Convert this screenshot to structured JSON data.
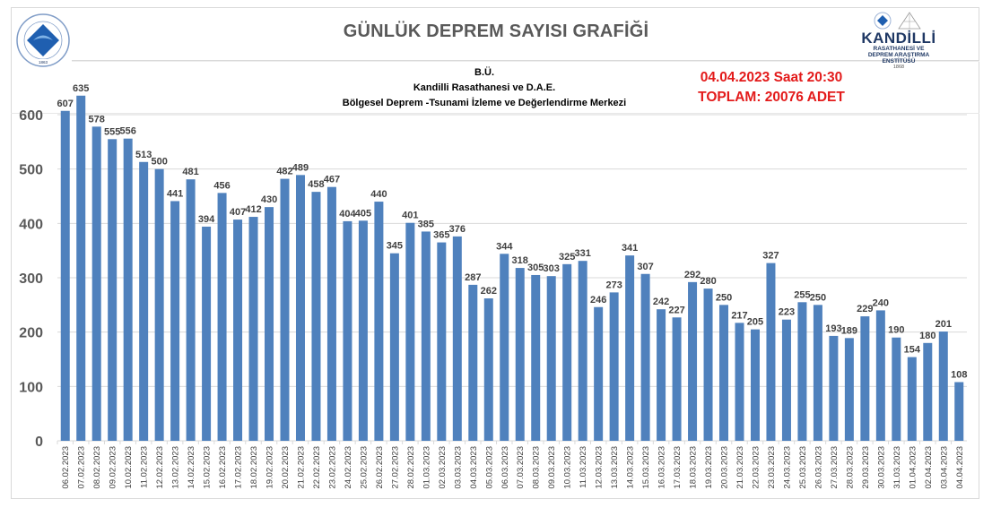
{
  "header": {
    "title": "GÜNLÜK  DEPREM SAYISI GRAFİĞİ",
    "subtitle_lines": [
      "B.Ü.",
      "Kandilli Rasathanesi ve D.A.E.",
      "Bölgesel Deprem -Tsunami İzleme ve Değerlendirme Merkezi"
    ],
    "timestamp": "04.04.2023 Saat 20:30",
    "total": "TOPLAM:  20076 ADET",
    "left_logo": {
      "text_top": "BOĞAZİÇİ ÜNİVERSİTESİ",
      "year": "1863"
    },
    "right_logo": {
      "name": "KANDİLLİ",
      "line1": "RASATHANESİ VE",
      "line2": "DEPREM ARAŞTIRMA",
      "line3": "ENSTİTÜSÜ",
      "year": "1868"
    }
  },
  "colors": {
    "bar": "#4f81bd",
    "grid": "#d9d9d9",
    "title": "#595959",
    "accent_red": "#e31b1b",
    "label": "#404040"
  },
  "chart_data": {
    "type": "bar",
    "title": "GÜNLÜK  DEPREM SAYISI GRAFİĞİ",
    "xlabel": "",
    "ylabel": "",
    "ylim": [
      0,
      650
    ],
    "yticks": [
      0,
      100,
      200,
      300,
      400,
      500,
      600
    ],
    "grid": true,
    "legend": "none",
    "categories": [
      "06.02.2023",
      "07.02.2023",
      "08.02.2023",
      "09.02.2023",
      "10.02.2023",
      "11.02.2023",
      "12.02.2023",
      "13.02.2023",
      "14.02.2023",
      "15.02.2023",
      "16.02.2023",
      "17.02.2023",
      "18.02.2023",
      "19.02.2023",
      "20.02.2023",
      "21.02.2023",
      "22.02.2023",
      "23.02.2023",
      "24.02.2023",
      "25.02.2023",
      "26.02.2023",
      "27.02.2023",
      "28.02.2023",
      "01.03.2023",
      "02.03.2023",
      "03.03.2023",
      "04.03.2023",
      "05.03.2023",
      "06.03.2023",
      "07.03.2023",
      "08.03.2023",
      "09.03.2023",
      "10.03.2023",
      "11.03.2023",
      "12.03.2023",
      "13.03.2023",
      "14.03.2023",
      "15.03.2023",
      "16.03.2023",
      "17.03.2023",
      "18.03.2023",
      "19.03.2023",
      "20.03.2023",
      "21.03.2023",
      "22.03.2023",
      "23.03.2023",
      "24.03.2023",
      "25.03.2023",
      "26.03.2023",
      "27.03.2023",
      "28.03.2023",
      "29.03.2023",
      "30.03.2023",
      "31.03.2023",
      "01.04.2023",
      "02.04.2023",
      "03.04.2023",
      "04.04.2023"
    ],
    "values": [
      607,
      635,
      578,
      555,
      556,
      513,
      500,
      441,
      481,
      394,
      456,
      407,
      412,
      430,
      482,
      489,
      458,
      467,
      404,
      405,
      440,
      345,
      401,
      385,
      365,
      376,
      287,
      262,
      344,
      318,
      305,
      303,
      325,
      331,
      246,
      273,
      341,
      307,
      242,
      227,
      292,
      280,
      250,
      217,
      205,
      327,
      223,
      255,
      250,
      193,
      189,
      229,
      240,
      190,
      154,
      180,
      201,
      108
    ]
  }
}
